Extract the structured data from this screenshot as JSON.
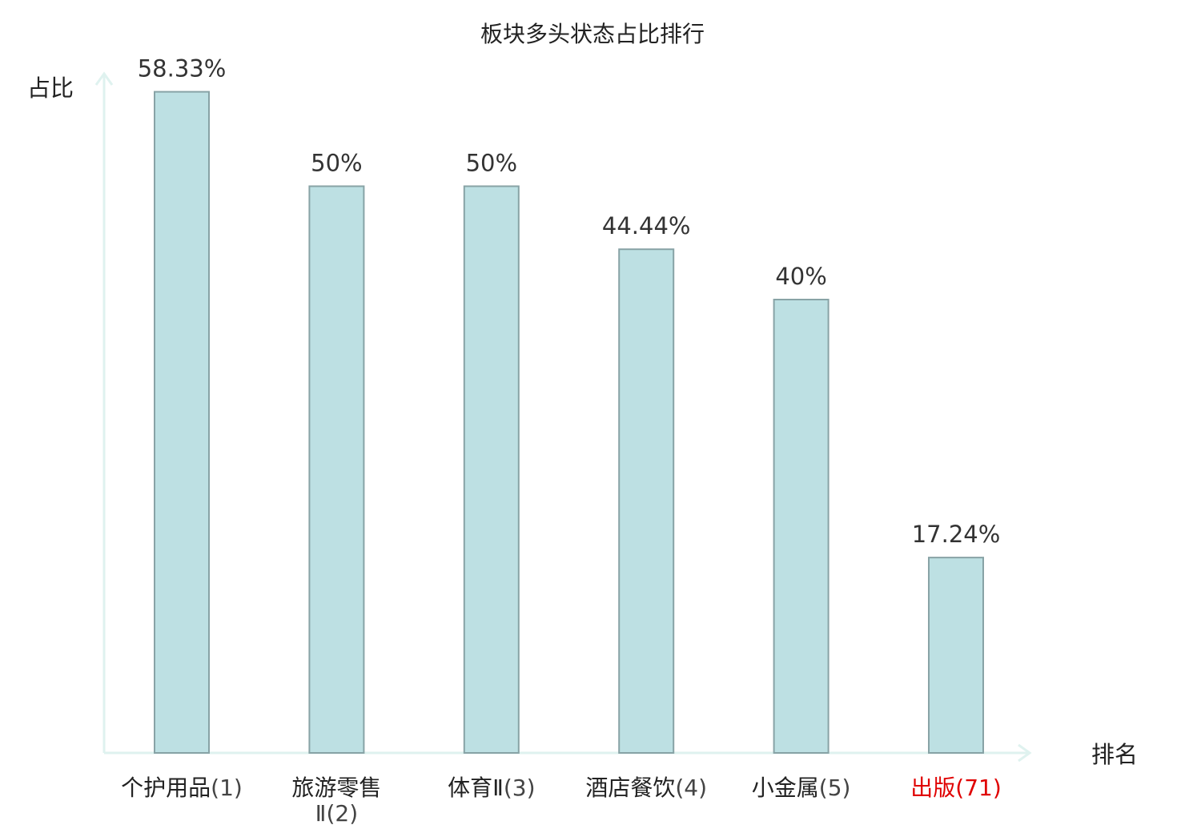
{
  "chart_data": {
    "type": "bar",
    "title": "板块多头状态占比排行",
    "ylabel": "占比",
    "xlabel": "排名",
    "ylim": [
      0,
      60
    ],
    "categories": [
      {
        "name": "个护用品",
        "rank": "(1)",
        "highlight": false
      },
      {
        "name": "旅游零售",
        "name_line2": "Ⅱ",
        "rank": "(2)",
        "highlight": false
      },
      {
        "name": "体育Ⅱ",
        "rank": "(3)",
        "highlight": false
      },
      {
        "name": "酒店餐饮",
        "rank": "(4)",
        "highlight": false
      },
      {
        "name": "小金属",
        "rank": "(5)",
        "highlight": false
      },
      {
        "name": "出版",
        "rank": "(71)",
        "highlight": true
      }
    ],
    "values": [
      58.33,
      50,
      50,
      44.44,
      40,
      17.24
    ],
    "value_labels": [
      "58.33%",
      "50%",
      "50%",
      "44.44%",
      "40%",
      "17.24%"
    ],
    "grid": false,
    "legend": "none"
  },
  "colors": {
    "bar_fill": "#bde0e3",
    "bar_stroke": "#88a3a6",
    "axis": "#dff2ef",
    "highlight_label": "#e00000"
  }
}
